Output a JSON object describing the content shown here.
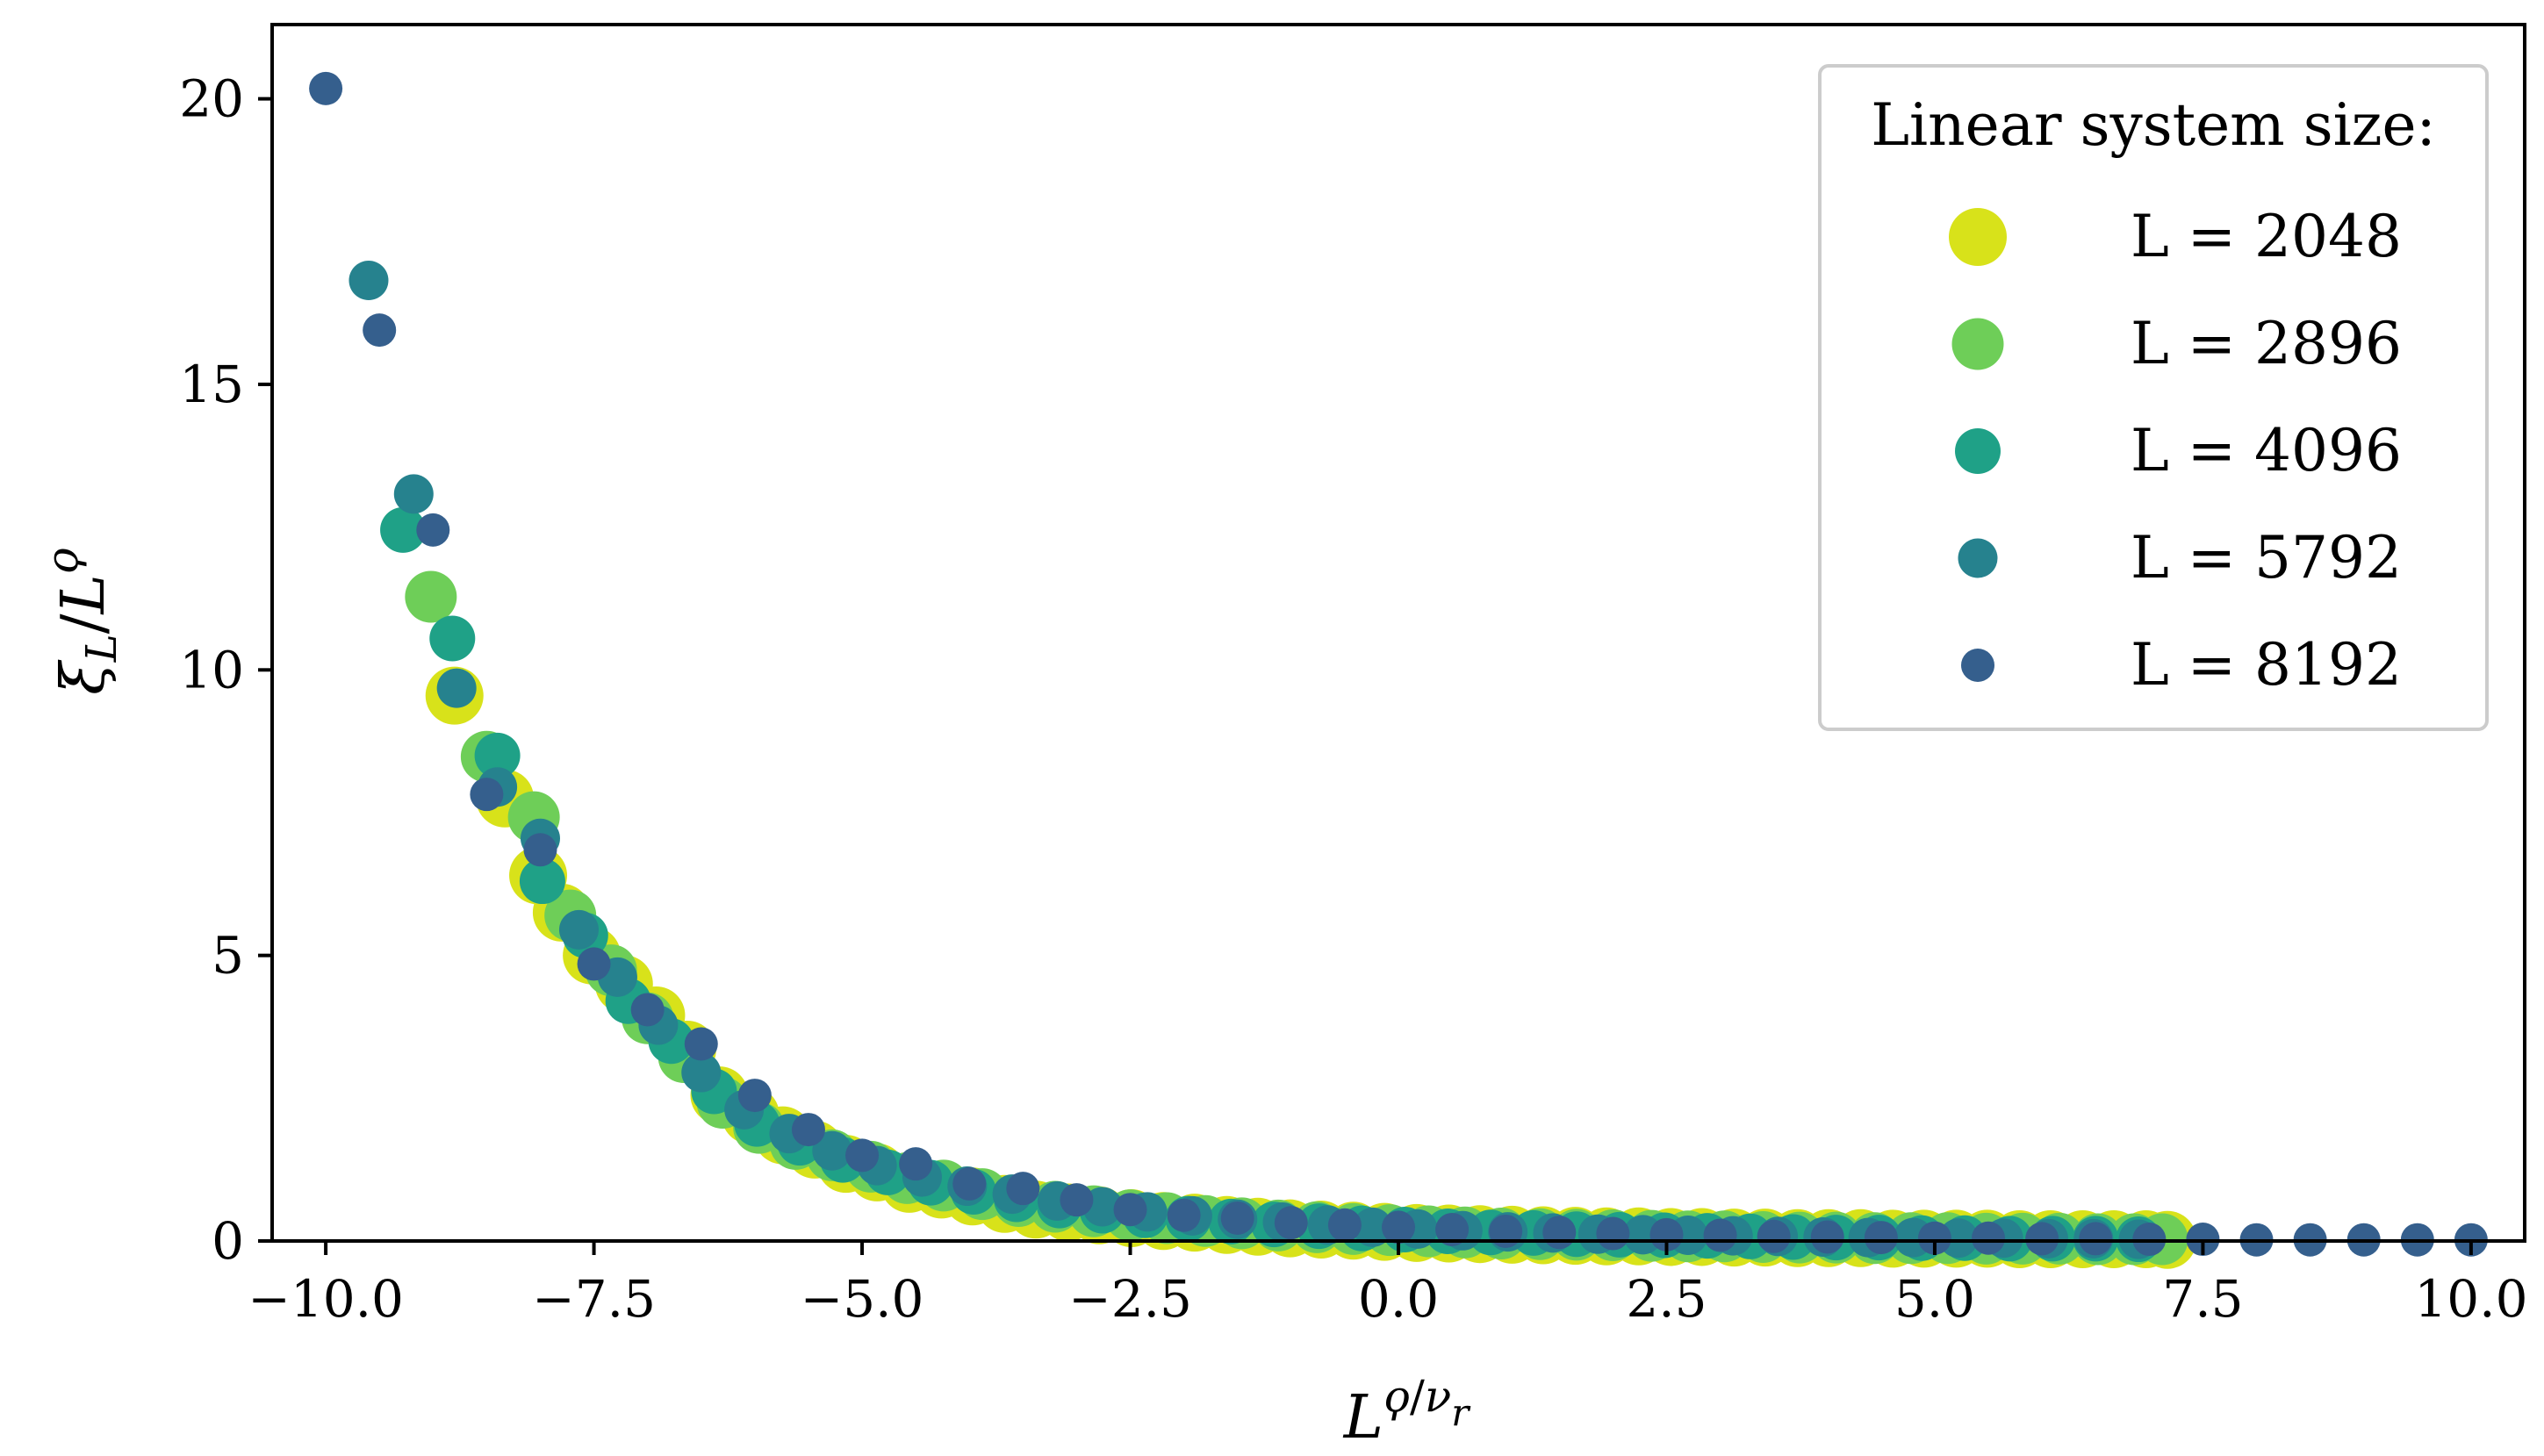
{
  "chart_data": {
    "type": "scatter",
    "title": "",
    "xlabel": "L^ϙ/ν_r",
    "ylabel": "ξ_L / L^ϙ",
    "xlim": [
      -10.5,
      10.5
    ],
    "ylim": [
      0,
      21.3
    ],
    "xticks": [
      -10,
      -7.5,
      -5,
      -2.5,
      0,
      2.5,
      5,
      7.5,
      10
    ],
    "xtick_labels": [
      "−10.0",
      "−7.5",
      "−5.0",
      "−2.5",
      "0.0",
      "2.5",
      "5.0",
      "7.5",
      "10.0"
    ],
    "yticks": [
      0,
      5,
      10,
      15,
      20
    ],
    "ytick_labels": [
      "0",
      "5",
      "10",
      "15",
      "20"
    ],
    "legend": {
      "title": "Linear system size:",
      "location": "top-right"
    },
    "series": [
      {
        "name": "L = 2048",
        "color": "#d8e21a",
        "marker_size": 3,
        "x": [
          -8.8,
          -8.33,
          -8.02,
          -7.8,
          -7.52,
          -7.22,
          -6.92,
          -6.63,
          -6.33,
          -6.04,
          -5.74,
          -5.44,
          -5.15,
          -4.86,
          -4.56,
          -4.26,
          -3.97,
          -3.67,
          -3.38,
          -3.08,
          -2.79,
          -2.49,
          -2.19,
          -1.9,
          -1.6,
          -1.31,
          -1.01,
          -0.72,
          -0.42,
          -0.13,
          0.17,
          0.47,
          0.76,
          1.06,
          1.35,
          1.65,
          1.94,
          2.24,
          2.54,
          2.83,
          3.13,
          3.42,
          3.72,
          4.01,
          4.31,
          4.61,
          4.9,
          5.2,
          5.49,
          5.79,
          6.08,
          6.38,
          6.67,
          6.97,
          7.17
        ],
        "y": [
          9.55,
          7.75,
          6.4,
          5.75,
          5.0,
          4.5,
          3.95,
          3.35,
          2.55,
          2.2,
          1.85,
          1.6,
          1.35,
          1.2,
          1.0,
          0.9,
          0.78,
          0.65,
          0.55,
          0.5,
          0.45,
          0.4,
          0.35,
          0.32,
          0.28,
          0.25,
          0.22,
          0.2,
          0.18,
          0.16,
          0.14,
          0.13,
          0.12,
          0.11,
          0.1,
          0.09,
          0.08,
          0.08,
          0.07,
          0.07,
          0.06,
          0.06,
          0.05,
          0.05,
          0.05,
          0.04,
          0.04,
          0.04,
          0.04,
          0.03,
          0.03,
          0.03,
          0.03,
          0.03,
          0.02
        ]
      },
      {
        "name": "L = 2896",
        "color": "#6ece58",
        "marker_size": 2.5,
        "x": [
          -9.02,
          -8.5,
          -8.06,
          -7.72,
          -7.34,
          -7.0,
          -6.66,
          -6.3,
          -5.96,
          -5.62,
          -5.28,
          -4.92,
          -4.58,
          -4.24,
          -3.88,
          -3.54,
          -3.2,
          -2.84,
          -2.5,
          -2.16,
          -1.8,
          -1.46,
          -1.12,
          -0.76,
          -0.42,
          -0.08,
          0.28,
          0.62,
          0.96,
          1.32,
          1.66,
          2.0,
          2.36,
          2.7,
          3.04,
          3.4,
          3.74,
          4.08,
          4.44,
          4.78,
          5.12,
          5.48,
          5.82,
          6.16,
          6.52,
          6.86,
          7.12
        ],
        "y": [
          11.28,
          8.48,
          7.42,
          5.7,
          4.74,
          3.9,
          3.22,
          2.42,
          1.98,
          1.7,
          1.5,
          1.3,
          1.1,
          0.97,
          0.82,
          0.7,
          0.6,
          0.52,
          0.45,
          0.4,
          0.35,
          0.31,
          0.27,
          0.24,
          0.21,
          0.19,
          0.17,
          0.15,
          0.13,
          0.12,
          0.11,
          0.1,
          0.09,
          0.08,
          0.08,
          0.07,
          0.06,
          0.06,
          0.05,
          0.05,
          0.05,
          0.04,
          0.04,
          0.04,
          0.03,
          0.03,
          0.03
        ]
      },
      {
        "name": "L = 4096",
        "color": "#1fa187",
        "marker_size": 2,
        "x": [
          -9.28,
          -8.82,
          -8.4,
          -7.98,
          -7.58,
          -7.18,
          -6.78,
          -6.38,
          -5.98,
          -5.58,
          -5.18,
          -4.76,
          -4.36,
          -3.96,
          -3.56,
          -3.16,
          -2.76,
          -2.36,
          -1.96,
          -1.56,
          -1.16,
          -0.74,
          -0.34,
          0.06,
          0.46,
          0.86,
          1.26,
          1.66,
          2.06,
          2.48,
          2.88,
          3.28,
          3.68,
          4.08,
          4.48,
          4.88,
          5.28,
          5.7,
          6.1,
          6.5,
          6.9
        ],
        "y": [
          12.45,
          10.55,
          8.5,
          6.3,
          5.35,
          4.2,
          3.5,
          2.62,
          2.05,
          1.72,
          1.42,
          1.2,
          1.02,
          0.86,
          0.73,
          0.62,
          0.53,
          0.45,
          0.39,
          0.34,
          0.29,
          0.26,
          0.22,
          0.2,
          0.17,
          0.15,
          0.14,
          0.12,
          0.11,
          0.1,
          0.09,
          0.08,
          0.07,
          0.06,
          0.06,
          0.05,
          0.05,
          0.04,
          0.04,
          0.04,
          0.03
        ]
      },
      {
        "name": "L = 5792",
        "color": "#26828e",
        "marker_size": 1.5,
        "x": [
          -9.6,
          -9.18,
          -8.78,
          -8.4,
          -8.0,
          -7.64,
          -7.28,
          -6.9,
          -6.5,
          -6.1,
          -5.68,
          -5.28,
          -4.86,
          -4.44,
          -4.02,
          -3.6,
          -3.18,
          -2.76,
          -2.34,
          -1.92,
          -1.5,
          -1.08,
          -0.66,
          -0.24,
          0.18,
          0.6,
          1.02,
          1.44,
          1.86,
          2.28,
          2.7,
          3.12,
          3.54,
          3.96,
          4.38,
          4.8,
          5.22,
          5.64,
          6.06,
          6.48,
          6.9
        ],
        "y": [
          16.82,
          13.08,
          9.68,
          7.95,
          7.05,
          5.45,
          4.62,
          3.78,
          2.95,
          2.3,
          1.88,
          1.58,
          1.32,
          1.12,
          0.96,
          0.82,
          0.7,
          0.6,
          0.51,
          0.44,
          0.38,
          0.33,
          0.28,
          0.24,
          0.21,
          0.18,
          0.16,
          0.14,
          0.12,
          0.11,
          0.1,
          0.09,
          0.08,
          0.07,
          0.06,
          0.06,
          0.05,
          0.05,
          0.04,
          0.04,
          0.03
        ]
      },
      {
        "name": "L = 8192",
        "color": "#355f8d",
        "marker_size": 1,
        "x": [
          -10.0,
          -9.5,
          -9.0,
          -8.5,
          -8.0,
          -7.5,
          -7.0,
          -6.5,
          -6.0,
          -5.5,
          -5.0,
          -4.5,
          -4.0,
          -3.5,
          -3.0,
          -2.5,
          -2.0,
          -1.5,
          -1.0,
          -0.5,
          0.0,
          0.5,
          1.0,
          1.5,
          2.0,
          2.5,
          3.0,
          3.5,
          4.0,
          4.5,
          5.0,
          5.5,
          6.0,
          6.5,
          7.0,
          7.5,
          8.0,
          8.5,
          9.0,
          9.5,
          10.0
        ],
        "y": [
          20.18,
          15.95,
          12.45,
          7.82,
          6.85,
          4.85,
          4.05,
          3.45,
          2.55,
          1.95,
          1.5,
          1.35,
          1.0,
          0.92,
          0.72,
          0.55,
          0.45,
          0.4,
          0.32,
          0.28,
          0.24,
          0.2,
          0.17,
          0.15,
          0.13,
          0.11,
          0.1,
          0.08,
          0.07,
          0.06,
          0.05,
          0.05,
          0.04,
          0.04,
          0.03,
          0.03,
          0.02,
          0.02,
          0.02,
          0.02,
          0.02
        ]
      }
    ]
  }
}
